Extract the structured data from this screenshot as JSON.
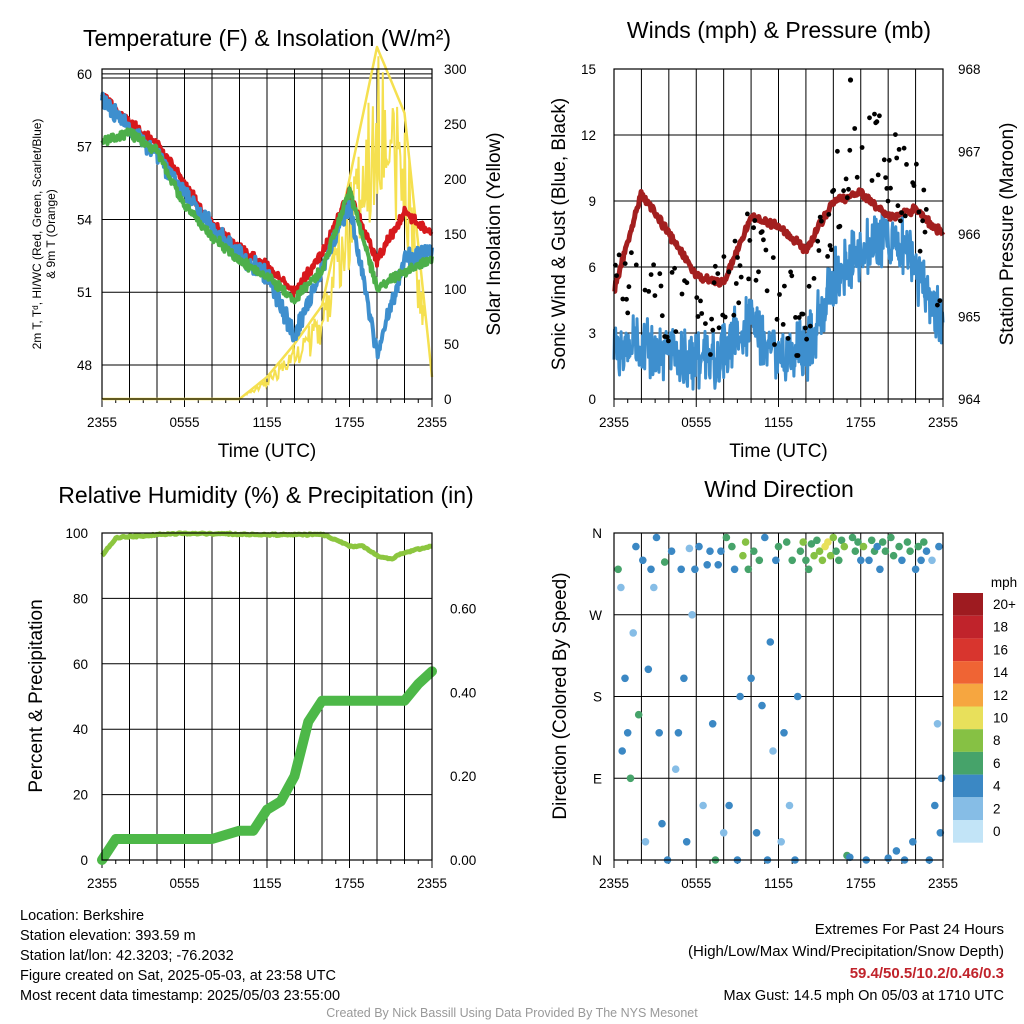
{
  "chart_data": [
    {
      "type": "line",
      "title": "Temperature (F) & Insolation (W/m²)",
      "xlabel": "Time (UTC)",
      "ylabel_left": "2m T, Td, HI/WC (Red, Green, Scarlet/Blue) & 9m T (Orange)",
      "ylabel_right": "Solar Insolation (Yellow)",
      "x_ticks": [
        "2355",
        "0555",
        "1155",
        "1755",
        "2355"
      ],
      "y_ticks_left": [
        48,
        51,
        54,
        57,
        60
      ],
      "y_ticks_right": [
        0,
        50,
        100,
        150,
        200,
        250,
        300
      ],
      "ylim_left": [
        46.6,
        60.2
      ],
      "ylim_right": [
        0,
        300
      ],
      "x_hours": [
        0,
        2,
        4,
        6,
        8,
        10,
        12,
        14,
        16,
        18,
        20,
        22,
        24
      ],
      "series": [
        {
          "key": "temp",
          "color": "#d7191c",
          "values": [
            59.1,
            58.0,
            57.1,
            55.5,
            53.8,
            52.8,
            52.1,
            51.0,
            52.6,
            55.1,
            52.3,
            54.3,
            53.4
          ]
        },
        {
          "key": "hiwc",
          "color": "#3e8fce",
          "values": [
            58.9,
            57.7,
            56.7,
            55.0,
            53.7,
            52.5,
            51.7,
            49.2,
            52.0,
            54.6,
            48.4,
            52.4,
            52.6
          ]
        },
        {
          "key": "dewpoint",
          "color": "#4daf4a",
          "values": [
            57.2,
            57.6,
            56.8,
            54.6,
            53.3,
            52.3,
            51.6,
            50.7,
            51.9,
            55.2,
            51.2,
            51.8,
            52.4
          ]
        },
        {
          "key": "solar",
          "color": "#f5e050",
          "values": [
            0,
            0,
            0,
            0,
            0,
            0,
            20,
            50,
            85,
            200,
            320,
            260,
            20
          ]
        }
      ]
    },
    {
      "type": "line",
      "title": "Winds (mph) & Pressure (mb)",
      "xlabel": "Time (UTC)",
      "ylabel_left": "Sonic Wind & Gust (Blue, Black)",
      "ylabel_right": "Station Pressure (Maroon)",
      "x_ticks": [
        "2355",
        "0555",
        "1155",
        "1755",
        "2355"
      ],
      "y_ticks_left": [
        0,
        3,
        6,
        9,
        12,
        15
      ],
      "y_ticks_right": [
        964,
        965,
        966,
        967,
        968
      ],
      "ylim_left": [
        0,
        15
      ],
      "ylim_right": [
        964,
        968
      ],
      "x_hours": [
        0,
        2,
        4,
        6,
        8,
        10,
        12,
        14,
        16,
        18,
        20,
        22,
        24
      ],
      "series": [
        {
          "key": "wind",
          "color": "#3e8fce",
          "values": [
            2.2,
            2.5,
            2.0,
            1.8,
            2.1,
            3.5,
            2.0,
            2.1,
            5.5,
            6.5,
            7.8,
            6.0,
            3.2
          ]
        },
        {
          "key": "pressure",
          "color": "#a31f1f",
          "values": [
            965.3,
            966.5,
            966.0,
            965.5,
            965.4,
            966.2,
            966.1,
            965.8,
            966.4,
            966.5,
            966.2,
            966.3,
            966.0
          ]
        },
        {
          "key": "gust",
          "color": "#000000",
          "values": [
            5.0,
            6.0,
            4.5,
            3.0,
            4.5,
            7.0,
            4.0,
            3.5,
            9.0,
            12.0,
            10.5,
            9.0,
            5.0
          ]
        }
      ],
      "max_gust": 14.5
    },
    {
      "type": "line",
      "title": "Relative Humidity (%) & Precipitation (in)",
      "ylabel_left": "Percent & Precipitation",
      "x_ticks": [
        "2355",
        "0555",
        "1155",
        "1755",
        "2355"
      ],
      "y_ticks_left": [
        0,
        20,
        40,
        60,
        80,
        100
      ],
      "y_ticks_right": [
        "0.00",
        "0.20",
        "0.40",
        "0.60"
      ],
      "ylim_left": [
        0,
        100
      ],
      "ylim_right": [
        0,
        0.78
      ],
      "x_hours": [
        0,
        1,
        2,
        3,
        4,
        5,
        6,
        7,
        8,
        9,
        10,
        11,
        12,
        13,
        14,
        15,
        16,
        17,
        18,
        19,
        20,
        21,
        22,
        23,
        24
      ],
      "series": [
        {
          "key": "rh",
          "color": "#8cc63f",
          "values": [
            93,
            98.5,
            99,
            99,
            99.5,
            99.8,
            99.8,
            99.8,
            99.8,
            99.8,
            99.5,
            99.5,
            99.5,
            99.5,
            99.5,
            99.5,
            99.5,
            98,
            96,
            96,
            93,
            92,
            94,
            95,
            96
          ]
        },
        {
          "key": "precip",
          "color": "#4db848",
          "values": [
            0.0,
            0.05,
            0.05,
            0.05,
            0.05,
            0.05,
            0.05,
            0.05,
            0.05,
            0.06,
            0.07,
            0.07,
            0.12,
            0.14,
            0.2,
            0.33,
            0.38,
            0.38,
            0.38,
            0.38,
            0.38,
            0.38,
            0.38,
            0.42,
            0.45
          ]
        }
      ]
    },
    {
      "type": "scatter",
      "title": "Wind Direction",
      "ylabel_left": "Direction (Colored By Speed)",
      "x_ticks": [
        "2355",
        "0555",
        "1155",
        "1755",
        "2355"
      ],
      "y_ticks_left": [
        "N",
        "E",
        "S",
        "W",
        "N"
      ],
      "ylim_left": [
        0,
        360
      ],
      "legend_title": "mph",
      "legend_labels": [
        "20+",
        "18",
        "16",
        "14",
        "12",
        "10",
        "8",
        "6",
        "4",
        "2",
        "0"
      ],
      "legend_colors": [
        "#9e1b20",
        "#c0232b",
        "#d8352e",
        "#ef6434",
        "#f6a640",
        "#e8e05b",
        "#86c144",
        "#46a36a",
        "#3b88c4",
        "#86bde6",
        "#c2e4f7"
      ],
      "points": [
        [
          0.3,
          320,
          6
        ],
        [
          0.5,
          300,
          2
        ],
        [
          0.6,
          120,
          3
        ],
        [
          0.8,
          200,
          4
        ],
        [
          1.0,
          140,
          3
        ],
        [
          1.2,
          90,
          5
        ],
        [
          1.4,
          250,
          2
        ],
        [
          1.6,
          345,
          3
        ],
        [
          1.8,
          160,
          5
        ],
        [
          2.1,
          330,
          4
        ],
        [
          2.3,
          20,
          2
        ],
        [
          2.5,
          210,
          3
        ],
        [
          2.7,
          320,
          4
        ],
        [
          2.9,
          300,
          2
        ],
        [
          3.1,
          355,
          4
        ],
        [
          3.3,
          140,
          3
        ],
        [
          3.5,
          40,
          3
        ],
        [
          3.7,
          328,
          5
        ],
        [
          3.9,
          0,
          4
        ],
        [
          4.2,
          340,
          3
        ],
        [
          4.5,
          100,
          2
        ],
        [
          4.7,
          140,
          3
        ],
        [
          4.9,
          320,
          4
        ],
        [
          5.1,
          200,
          4
        ],
        [
          5.3,
          20,
          3
        ],
        [
          5.5,
          343,
          2
        ],
        [
          5.7,
          270,
          2
        ],
        [
          5.9,
          320,
          4
        ],
        [
          6.2,
          345,
          4
        ],
        [
          6.5,
          60,
          2
        ],
        [
          6.8,
          325,
          4
        ],
        [
          7.0,
          340,
          4
        ],
        [
          7.2,
          150,
          3
        ],
        [
          7.4,
          0,
          5
        ],
        [
          7.6,
          325,
          4
        ],
        [
          7.8,
          340,
          4
        ],
        [
          8.0,
          30,
          2
        ],
        [
          8.2,
          355,
          5
        ],
        [
          8.4,
          60,
          4
        ],
        [
          8.6,
          345,
          6
        ],
        [
          8.8,
          320,
          4
        ],
        [
          9.0,
          0,
          4
        ],
        [
          9.2,
          180,
          4
        ],
        [
          9.4,
          335,
          8
        ],
        [
          9.6,
          350,
          7
        ],
        [
          9.8,
          320,
          6
        ],
        [
          10.0,
          200,
          3
        ],
        [
          10.2,
          340,
          5
        ],
        [
          10.4,
          30,
          4
        ],
        [
          10.6,
          330,
          6
        ],
        [
          10.8,
          170,
          3
        ],
        [
          11.0,
          355,
          4
        ],
        [
          11.2,
          0,
          3
        ],
        [
          11.4,
          240,
          3
        ],
        [
          11.6,
          120,
          2
        ],
        [
          11.8,
          330,
          4
        ],
        [
          12.0,
          345,
          5
        ],
        [
          12.2,
          20,
          2
        ],
        [
          12.4,
          140,
          3
        ],
        [
          12.6,
          350,
          5
        ],
        [
          12.8,
          60,
          2
        ],
        [
          13.0,
          330,
          6
        ],
        [
          13.2,
          0,
          3
        ],
        [
          13.4,
          180,
          3
        ],
        [
          13.6,
          340,
          6
        ],
        [
          13.8,
          350,
          7
        ],
        [
          14.0,
          330,
          6
        ],
        [
          14.2,
          320,
          5
        ],
        [
          14.4,
          348,
          6
        ],
        [
          14.6,
          335,
          7
        ],
        [
          14.8,
          352,
          6
        ],
        [
          15.0,
          340,
          7
        ],
        [
          15.2,
          330,
          8
        ],
        [
          15.4,
          345,
          9
        ],
        [
          15.6,
          350,
          10
        ],
        [
          15.8,
          335,
          8
        ],
        [
          16.0,
          355,
          7
        ],
        [
          16.2,
          340,
          6
        ],
        [
          16.4,
          330,
          6
        ],
        [
          16.6,
          352,
          5
        ],
        [
          16.8,
          345,
          7
        ],
        [
          17.0,
          5,
          5
        ],
        [
          17.2,
          3,
          4
        ],
        [
          17.4,
          355,
          6
        ],
        [
          17.6,
          340,
          5
        ],
        [
          17.8,
          350,
          6
        ],
        [
          18.0,
          330,
          4
        ],
        [
          18.2,
          345,
          7
        ],
        [
          18.4,
          0,
          4
        ],
        [
          18.6,
          330,
          3
        ],
        [
          18.8,
          352,
          6
        ],
        [
          19.0,
          340,
          5
        ],
        [
          19.2,
          345,
          4
        ],
        [
          19.4,
          320,
          3
        ],
        [
          19.6,
          350,
          6
        ],
        [
          19.8,
          340,
          5
        ],
        [
          20.0,
          2,
          4
        ],
        [
          20.2,
          355,
          6
        ],
        [
          20.4,
          335,
          5
        ],
        [
          20.6,
          10,
          3
        ],
        [
          20.8,
          345,
          5
        ],
        [
          21.0,
          330,
          4
        ],
        [
          21.2,
          0,
          3
        ],
        [
          21.4,
          350,
          6
        ],
        [
          21.6,
          340,
          5
        ],
        [
          21.8,
          20,
          3
        ],
        [
          22.0,
          320,
          4
        ],
        [
          22.2,
          345,
          5
        ],
        [
          22.4,
          330,
          4
        ],
        [
          22.6,
          350,
          5
        ],
        [
          22.8,
          340,
          4
        ],
        [
          23.0,
          0,
          3
        ],
        [
          23.2,
          330,
          2
        ],
        [
          23.4,
          60,
          3
        ],
        [
          23.6,
          150,
          2
        ],
        [
          23.7,
          345,
          4
        ],
        [
          23.8,
          30,
          4
        ],
        [
          23.9,
          90,
          3
        ]
      ]
    }
  ],
  "location_line": "Location: Berkshire",
  "elevation_line": "Station elevation: 393.59 m",
  "latlon_line": "Station lat/lon: 42.3203; -76.2032",
  "created_line": "Figure created on Sat, 2025-05-03, at 23:58 UTC",
  "recent_line": "Most recent data timestamp: 2025/05/03 23:55:00",
  "extremes_title": "Extremes For Past 24 Hours",
  "extremes_subtitle": "(High/Low/Max Wind/Precipitation/Snow Depth)",
  "extremes_values": "59.4/50.5/10.2/0.46/0.3",
  "extremes_color": "#c0232b",
  "max_gust_line": "Max Gust: 14.5 mph On 05/03 at 1710 UTC",
  "credit_line": "Created By Nick Bassill Using Data Provided By The NYS Mesonet"
}
